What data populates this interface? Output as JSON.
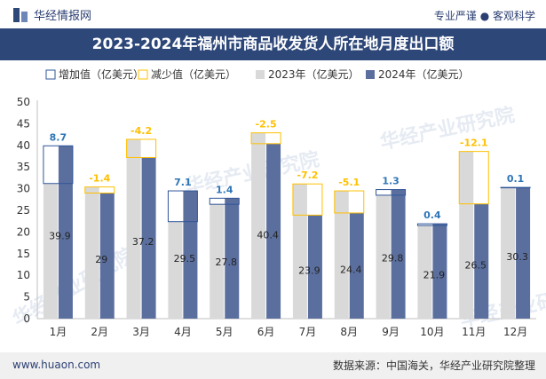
{
  "header": {
    "brand": "华经情报网",
    "slogan": "专业严谨 ● 客观科学"
  },
  "title": "2023-2024年福州市商品收发货人所在地月度出口额",
  "footer": {
    "site": "www.huaon.com",
    "source": "数据来源：中国海关，华经产业研究院整理"
  },
  "watermark": "华经产业研究院",
  "colors": {
    "brand": "#2e4779",
    "bar2023": "#d9d9d9",
    "bar2024": "#5b6f9f",
    "increase": "#2f5597",
    "decrease": "#ffc000"
  },
  "chart_data": {
    "type": "bar",
    "title": "2023-2024年福州市商品收发货人所在地月度出口额",
    "categories": [
      "1月",
      "2月",
      "3月",
      "4月",
      "5月",
      "6月",
      "7月",
      "8月",
      "9月",
      "10月",
      "11月",
      "12月"
    ],
    "series": [
      {
        "name": "2023年（亿美元）",
        "values": [
          31.2,
          30.4,
          41.4,
          22.4,
          26.4,
          42.9,
          31.1,
          29.5,
          28.5,
          21.5,
          38.6,
          30.2
        ]
      },
      {
        "name": "2024年（亿美元）",
        "values": [
          39.9,
          29,
          37.2,
          29.5,
          27.8,
          40.4,
          23.9,
          24.4,
          29.8,
          21.9,
          26.5,
          30.3
        ]
      }
    ],
    "change": {
      "increase_name": "增加值（亿美元）",
      "decrease_name": "减少值（亿美元）",
      "values": [
        8.7,
        -1.4,
        -4.2,
        7.1,
        1.4,
        -2.5,
        -7.2,
        -5.1,
        1.3,
        0.4,
        -12.1,
        0.1
      ]
    },
    "ylim": [
      0,
      50
    ],
    "yticks": [
      0,
      5,
      10,
      15,
      20,
      25,
      30,
      35,
      40,
      45,
      50
    ],
    "legend_position": "top"
  }
}
